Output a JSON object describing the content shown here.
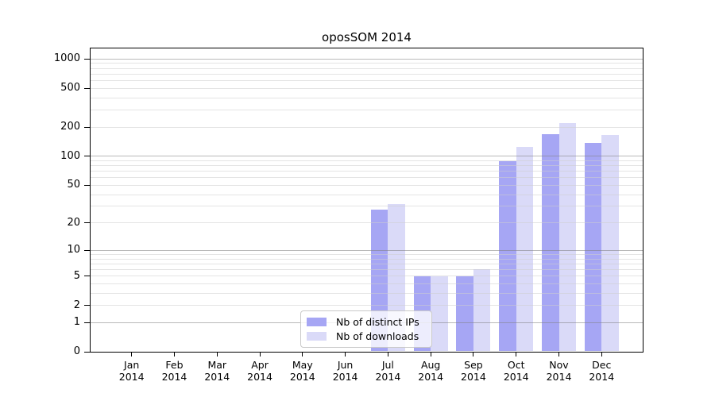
{
  "figure": {
    "title": "oposSOM 2014"
  },
  "legend": {
    "items": [
      {
        "label": "Nb of distinct IPs",
        "key": "ips"
      },
      {
        "label": "Nb of downloads",
        "key": "downloads"
      }
    ]
  },
  "colors": {
    "ips": "#a6a6f4",
    "downloads": "#dadaf8",
    "grid_major": "#b9b9b9",
    "grid_minor": "#e8e8e8",
    "frame": "#000000",
    "legend_border": "#c9c9c9",
    "background": "#ffffff",
    "text": "#000000"
  },
  "chart_data": {
    "type": "bar",
    "title": "oposSOM 2014",
    "categories": [
      "Jan 2014",
      "Feb 2014",
      "Mar 2014",
      "Apr 2014",
      "May 2014",
      "Jun 2014",
      "Jul 2014",
      "Aug 2014",
      "Sep 2014",
      "Oct 2014",
      "Nov 2014",
      "Dec 2014"
    ],
    "x_tick_months": [
      "Jan",
      "Feb",
      "Mar",
      "Apr",
      "May",
      "Jun",
      "Jul",
      "Aug",
      "Sep",
      "Oct",
      "Nov",
      "Dec"
    ],
    "x_tick_year": "2014",
    "series": [
      {
        "name": "Nb of distinct IPs",
        "values": [
          0,
          0,
          0,
          0,
          0,
          0,
          28,
          5,
          5,
          89,
          170,
          138
        ]
      },
      {
        "name": "Nb of downloads",
        "values": [
          0,
          0,
          0,
          0,
          0,
          0,
          32,
          5,
          6,
          125,
          220,
          166
        ]
      }
    ],
    "y_ticks": [
      0,
      1,
      2,
      5,
      10,
      20,
      50,
      100,
      200,
      500,
      1000
    ],
    "y_scale": "log10(1+x)",
    "ylim": [
      0,
      1300
    ],
    "grid": "both",
    "legend_position": "bottom-center",
    "xlabel": "",
    "ylabel": ""
  }
}
